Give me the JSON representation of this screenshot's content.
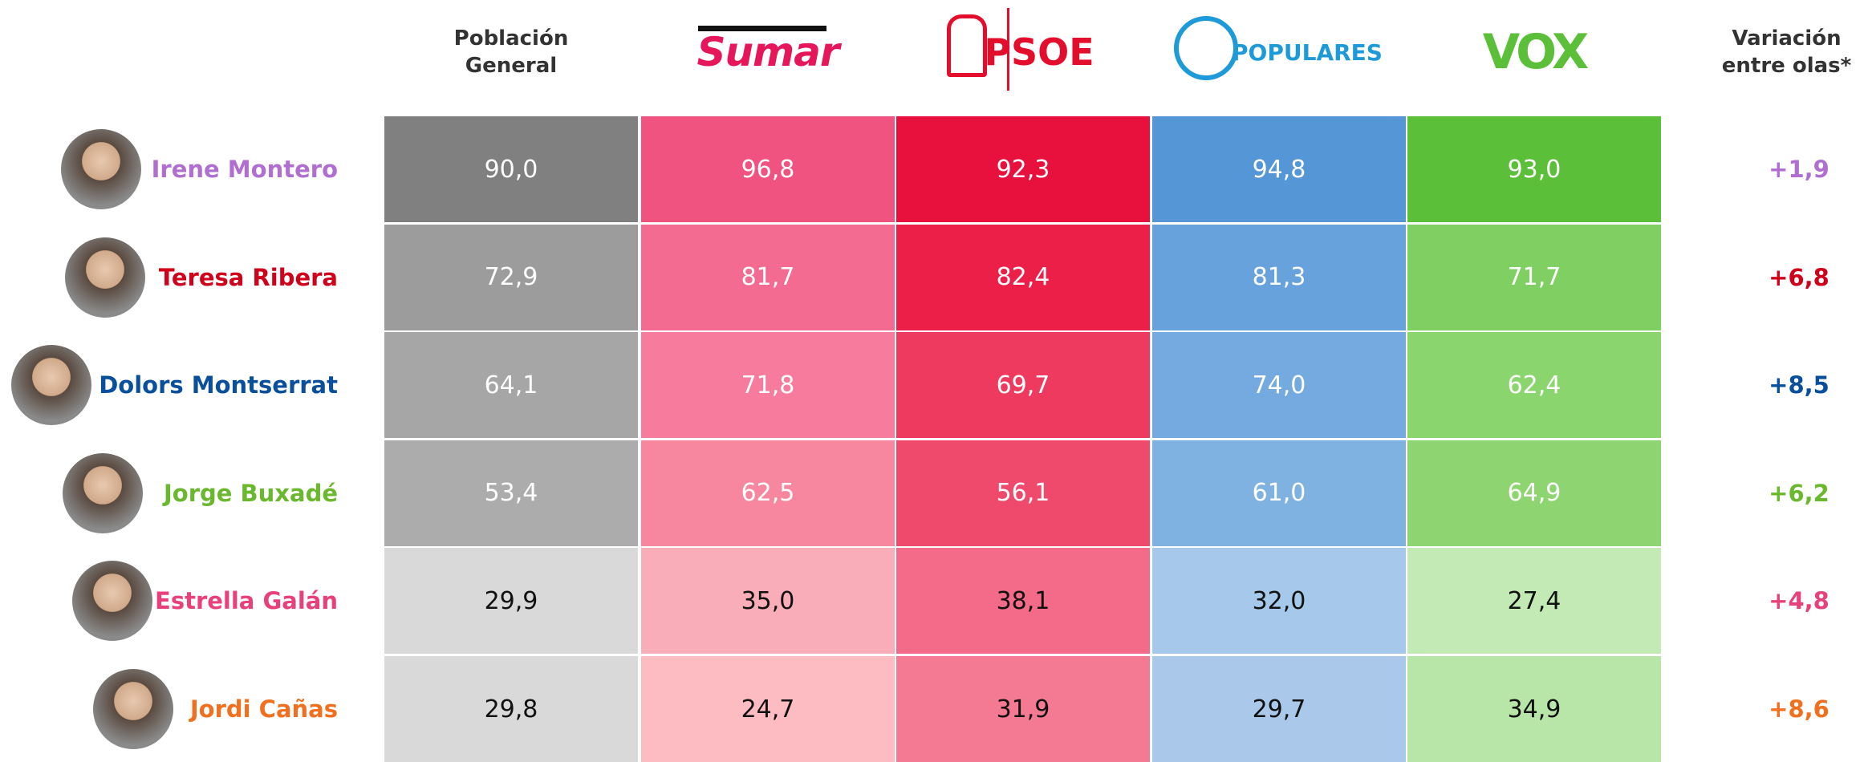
{
  "header": {
    "columns": [
      "Población General",
      "Sumar",
      "PSOE",
      "POPULARES",
      "VOX"
    ],
    "variation": "Variación entre olas*"
  },
  "table": {
    "rows": [
      {
        "name": "Irene Montero",
        "values": [
          "90,0",
          "96,8",
          "92,3",
          "94,8",
          "93,0"
        ],
        "variation": "+1,9"
      },
      {
        "name": "Teresa Ribera",
        "values": [
          "72,9",
          "81,7",
          "82,4",
          "81,3",
          "71,7"
        ],
        "variation": "+6,8"
      },
      {
        "name": "Dolors Montserrat",
        "values": [
          "64,1",
          "71,8",
          "69,7",
          "74,0",
          "62,4"
        ],
        "variation": "+8,5"
      },
      {
        "name": "Jorge Buxadé",
        "values": [
          "53,4",
          "62,5",
          "56,1",
          "61,0",
          "64,9"
        ],
        "variation": "+6,2"
      },
      {
        "name": "Estrella Galán",
        "values": [
          "29,9",
          "35,0",
          "38,1",
          "32,0",
          "27,4"
        ],
        "variation": "+4,8"
      },
      {
        "name": "Jordi Cañas",
        "values": [
          "29,8",
          "24,7",
          "31,9",
          "29,7",
          "34,9"
        ],
        "variation": "+8,6"
      }
    ]
  }
}
